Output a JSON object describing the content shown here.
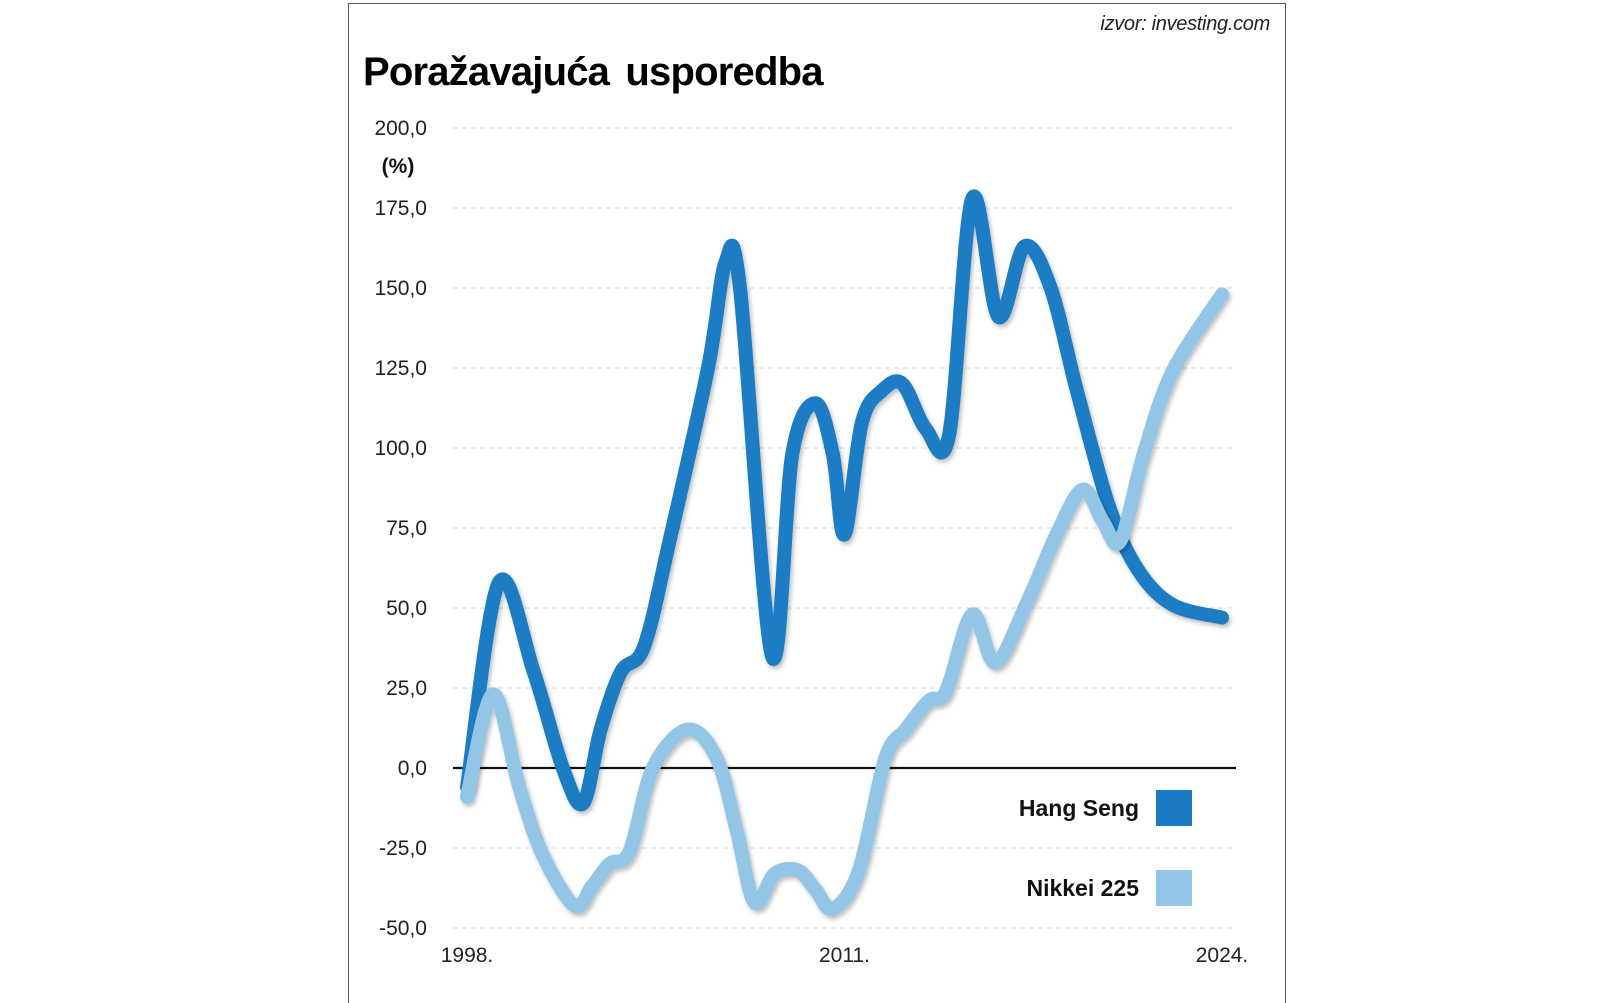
{
  "source": "izvor: investing.com",
  "title": "Poražavajuća usporedba",
  "colors": {
    "hang_seng": "#1a7bc4",
    "nikkei": "#92c5e6",
    "grid": "#d5d5d5",
    "zero": "#111111"
  },
  "chart_data": {
    "type": "line",
    "title": "Poražavajuća usporedba",
    "ylabel": "(%)",
    "xlabel": "",
    "ylim": [
      -50,
      200
    ],
    "xlim": [
      1998,
      2024
    ],
    "yticks": [
      "200,0",
      "175,0",
      "150,0",
      "125,0",
      "100,0",
      "75,0",
      "50,0",
      "25,0",
      "0,0",
      "-25,0",
      "-50,0"
    ],
    "ytick_values": [
      200,
      175,
      150,
      125,
      100,
      75,
      50,
      25,
      0,
      -25,
      -50
    ],
    "xticks": [
      "1998.",
      "2011.",
      "2024."
    ],
    "xtick_values": [
      1998,
      2011,
      2024
    ],
    "grid": true,
    "legend_position": "bottom-right",
    "series": [
      {
        "name": "Hang Seng",
        "color": "#1a7bc4",
        "x": [
          1998,
          1999.1,
          2000.3,
          2001.3,
          2002.0,
          2002.6,
          2003.3,
          2004.1,
          2005.0,
          2006.3,
          2006.9,
          2007.4,
          2008.5,
          2009.2,
          2010.0,
          2010.6,
          2011.0,
          2011.6,
          2012.3,
          2013.0,
          2013.8,
          2014.6,
          2015.4,
          2016.3,
          2017.2,
          2018.1,
          2019.0,
          2020.1,
          2021.1,
          2022.3,
          2024
        ],
        "y": [
          -6,
          58,
          30,
          0,
          -11,
          12,
          30,
          38,
          72,
          125,
          158,
          150,
          35,
          98,
          114,
          98,
          73,
          108,
          118,
          120,
          106,
          104,
          178,
          141,
          163,
          150,
          118,
          82,
          62,
          51,
          47
        ]
      },
      {
        "name": "Nikkei 225",
        "color": "#92c5e6",
        "x": [
          1998,
          1998.9,
          1999.8,
          2000.6,
          2001.7,
          2002.3,
          2002.9,
          2003.6,
          2004.4,
          2005.6,
          2006.6,
          2007.3,
          2007.9,
          2008.6,
          2009.4,
          2010.0,
          2010.6,
          2011.5,
          2012.4,
          2013.1,
          2013.9,
          2014.5,
          2015.4,
          2016.2,
          2017.3,
          2018.3,
          2019.2,
          2019.9,
          2020.5,
          2021.3,
          2022.3,
          2024
        ],
        "y": [
          -9,
          23,
          -6,
          -27,
          -43,
          -37,
          -30,
          -26,
          0,
          12,
          3,
          -20,
          -42,
          -33,
          -32,
          -38,
          -44,
          -32,
          3,
          12,
          21,
          24,
          48,
          33,
          52,
          73,
          87,
          77,
          71,
          98,
          124,
          148
        ]
      }
    ]
  }
}
